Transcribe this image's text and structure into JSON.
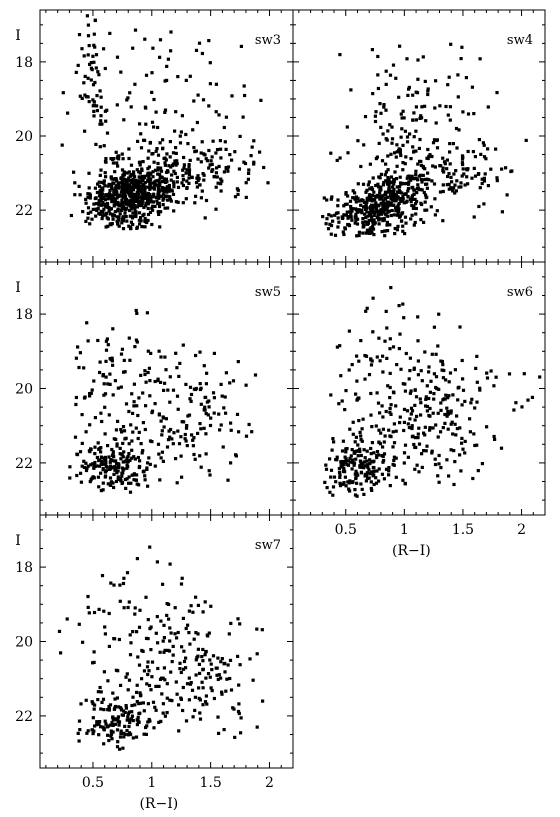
{
  "chart_data": {
    "type": "scatter",
    "x_axis": {
      "label": "(R−I)",
      "range": [
        0.05,
        2.2
      ],
      "major_ticks": [
        0.5,
        1,
        1.5,
        2
      ],
      "tick_labels": [
        "0.5",
        "1",
        "1.5",
        "2"
      ],
      "minor_step": 0.1
    },
    "y_axis": {
      "label": "I",
      "range": [
        23.4,
        16.6
      ],
      "inverted": true,
      "major_ticks": [
        18,
        20,
        22
      ],
      "tick_labels": [
        "18",
        "20",
        "22"
      ],
      "minor_step": 0.5
    },
    "panels": [
      {
        "name": "sw3",
        "clusters": [
          {
            "n": 620,
            "cx": 0.82,
            "cy": 21.6,
            "sx": 0.19,
            "sy": 0.42,
            "xmin": 0.3,
            "xmax": 1.75,
            "ymin": 20.4,
            "ymax": 22.5,
            "slope": -0.6
          },
          {
            "n": 150,
            "cx": 1.35,
            "cy": 20.9,
            "sx": 0.32,
            "sy": 0.45,
            "xmin": 0.6,
            "xmax": 2.0,
            "ymin": 20.0,
            "ymax": 22.2,
            "slope": 0
          },
          {
            "n": 110,
            "cx": 1.1,
            "cy": 19.2,
            "sx": 0.4,
            "sy": 1.3,
            "xmin": 0.15,
            "xmax": 2.1,
            "ymin": 17.0,
            "ymax": 22.5,
            "slope": 0
          },
          {
            "n": 55,
            "cx": 0.5,
            "cy": 18.6,
            "sx": 0.06,
            "sy": 1.0,
            "xmin": 0.35,
            "xmax": 0.7,
            "ymin": 16.7,
            "ymax": 20.5,
            "slope": 0
          }
        ]
      },
      {
        "name": "sw4",
        "clusters": [
          {
            "n": 420,
            "cx": 0.78,
            "cy": 21.9,
            "sx": 0.2,
            "sy": 0.38,
            "xmin": 0.3,
            "xmax": 1.7,
            "ymin": 20.7,
            "ymax": 22.7,
            "slope": -0.8
          },
          {
            "n": 170,
            "cx": 1.3,
            "cy": 21.0,
            "sx": 0.34,
            "sy": 0.5,
            "xmin": 0.55,
            "xmax": 2.05,
            "ymin": 19.9,
            "ymax": 22.4,
            "slope": 0
          },
          {
            "n": 120,
            "cx": 1.1,
            "cy": 19.3,
            "sx": 0.38,
            "sy": 1.0,
            "xmin": 0.35,
            "xmax": 1.85,
            "ymin": 17.4,
            "ymax": 21.5,
            "slope": 0
          }
        ]
      },
      {
        "name": "sw5",
        "clusters": [
          {
            "n": 180,
            "cx": 0.68,
            "cy": 22.1,
            "sx": 0.15,
            "sy": 0.35,
            "xmin": 0.3,
            "xmax": 1.3,
            "ymin": 21.0,
            "ymax": 22.8,
            "slope": 0
          },
          {
            "n": 170,
            "cx": 1.25,
            "cy": 20.8,
            "sx": 0.32,
            "sy": 0.9,
            "xmin": 0.55,
            "xmax": 1.9,
            "ymin": 18.7,
            "ymax": 22.6,
            "slope": 0
          },
          {
            "n": 80,
            "cx": 0.6,
            "cy": 19.5,
            "sx": 0.2,
            "sy": 1.1,
            "xmin": 0.3,
            "xmax": 1.1,
            "ymin": 16.9,
            "ymax": 22.5,
            "slope": 0
          }
        ]
      },
      {
        "name": "sw6",
        "clusters": [
          {
            "n": 170,
            "cx": 0.62,
            "cy": 22.1,
            "sx": 0.14,
            "sy": 0.45,
            "xmin": 0.3,
            "xmax": 1.1,
            "ymin": 20.8,
            "ymax": 22.9,
            "slope": 0
          },
          {
            "n": 190,
            "cx": 1.25,
            "cy": 20.9,
            "sx": 0.3,
            "sy": 0.9,
            "xmin": 0.6,
            "xmax": 1.85,
            "ymin": 19.0,
            "ymax": 22.6,
            "slope": 0
          },
          {
            "n": 110,
            "cx": 0.95,
            "cy": 19.8,
            "sx": 0.35,
            "sy": 1.2,
            "xmin": 0.3,
            "xmax": 1.75,
            "ymin": 17.1,
            "ymax": 22.8,
            "slope": 0
          },
          {
            "n": 8,
            "cx": 2.0,
            "cy": 20.4,
            "sx": 0.1,
            "sy": 0.6,
            "xmin": 1.85,
            "xmax": 2.2,
            "ymin": 19.6,
            "ymax": 21.6,
            "slope": 0
          }
        ]
      },
      {
        "name": "sw7",
        "clusters": [
          {
            "n": 140,
            "cx": 0.7,
            "cy": 22.1,
            "sx": 0.15,
            "sy": 0.4,
            "xmin": 0.3,
            "xmax": 1.3,
            "ymin": 20.8,
            "ymax": 22.9,
            "slope": 0
          },
          {
            "n": 150,
            "cx": 1.3,
            "cy": 20.9,
            "sx": 0.3,
            "sy": 0.9,
            "xmin": 0.55,
            "xmax": 1.95,
            "ymin": 19.0,
            "ymax": 22.6,
            "slope": 0
          },
          {
            "n": 110,
            "cx": 0.95,
            "cy": 19.9,
            "sx": 0.4,
            "sy": 1.2,
            "xmin": 0.2,
            "xmax": 1.95,
            "ymin": 17.3,
            "ymax": 22.8,
            "slope": 0
          }
        ]
      }
    ]
  }
}
